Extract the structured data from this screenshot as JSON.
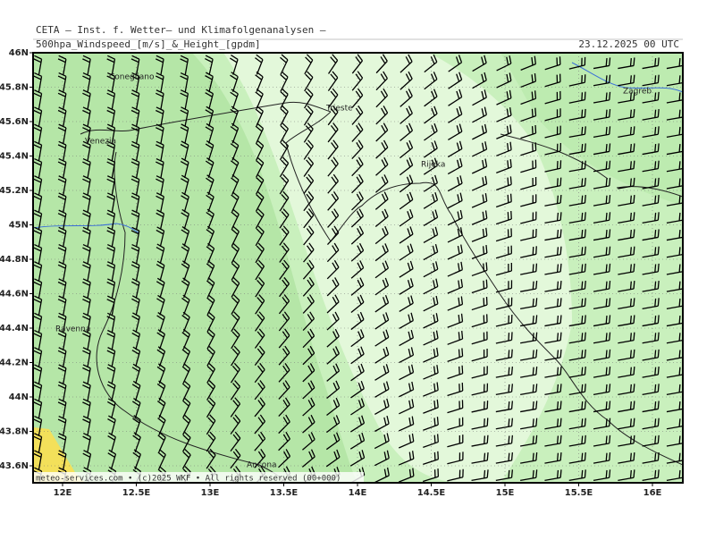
{
  "header": {
    "source": "CETA – Inst. f. Wetter– und Klimafolgenanalysen –",
    "title": "500hpa_Windspeed_[m/s]_&_Height_[gpdm]",
    "date": "23.12.2025 00 UTC"
  },
  "axes": {
    "lat_ticks": [
      {
        "value": 46,
        "label": "46N"
      },
      {
        "value": 45.8,
        "label": "45.8N"
      },
      {
        "value": 45.6,
        "label": "45.6N"
      },
      {
        "value": 45.4,
        "label": "45.4N"
      },
      {
        "value": 45.2,
        "label": "45.2N"
      },
      {
        "value": 45,
        "label": "45N"
      },
      {
        "value": 44.8,
        "label": "44.8N"
      },
      {
        "value": 44.6,
        "label": "44.6N"
      },
      {
        "value": 44.4,
        "label": "44.4N"
      },
      {
        "value": 44.2,
        "label": "44.2N"
      },
      {
        "value": 44,
        "label": "44N"
      },
      {
        "value": 43.8,
        "label": "43.8N"
      },
      {
        "value": 43.6,
        "label": "43.6N"
      }
    ],
    "lon_ticks": [
      {
        "value": 12,
        "label": "12E"
      },
      {
        "value": 12.5,
        "label": "12.5E"
      },
      {
        "value": 13,
        "label": "13E"
      },
      {
        "value": 13.5,
        "label": "13.5E"
      },
      {
        "value": 14,
        "label": "14E"
      },
      {
        "value": 14.5,
        "label": "14.5E"
      },
      {
        "value": 15,
        "label": "15E"
      },
      {
        "value": 15.5,
        "label": "15.5E"
      },
      {
        "value": 16,
        "label": "16E"
      }
    ]
  },
  "cities": [
    "Conegliano",
    "Trieste",
    "Venezia",
    "Rijeka",
    "Zagreb",
    "Ravenna",
    "Ancona"
  ],
  "footer": "meteo-services.com • (c)2025 WKF • All rights reserved (00+000)"
}
